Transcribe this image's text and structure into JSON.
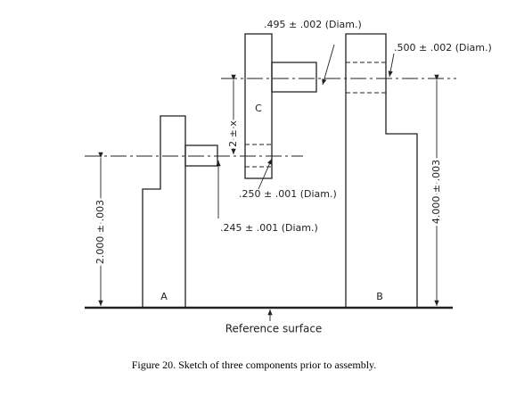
{
  "callouts": {
    "pin_c_diam": ".495 ± .002 (Diam.)",
    "hole_b_diam": ".500 ± .002 (Diam.)",
    "hole_c_diam": ".250 ± .001 (Diam.)",
    "pin_a_diam": ".245 ± .001 (Diam.)"
  },
  "dimensions": {
    "height_a": "2.000 ± .003",
    "height_b": "4.000 ± .003",
    "offset_c": "2 ± x"
  },
  "parts": {
    "a": "A",
    "b": "B",
    "c": "C"
  },
  "reference": "Reference surface",
  "caption": "Figure 20. Sketch of three components prior to assembly."
}
